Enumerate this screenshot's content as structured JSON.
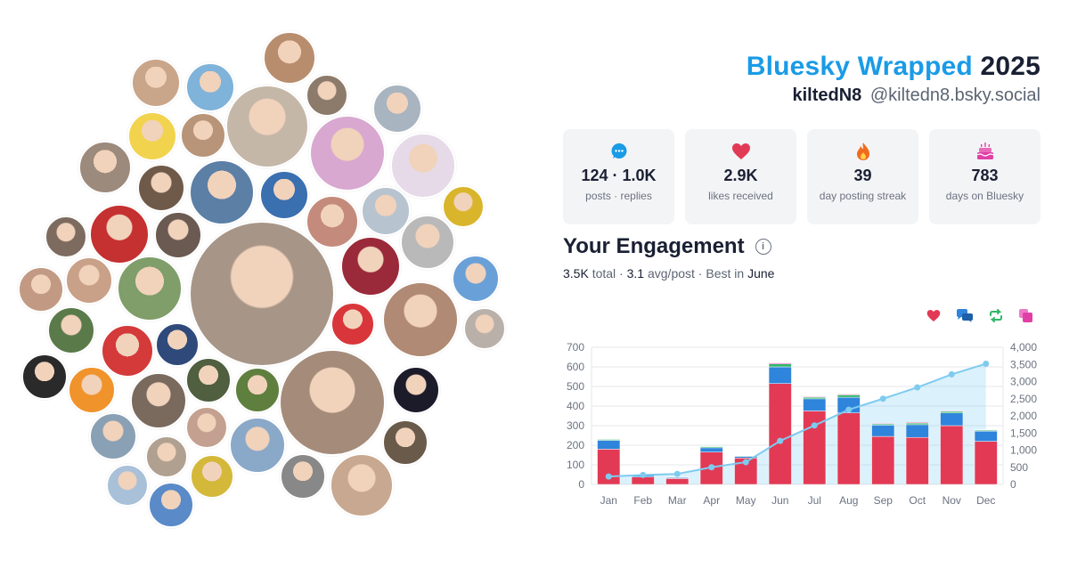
{
  "header": {
    "brand": "Bluesky Wrapped",
    "year": "2025",
    "display_name": "kiltedN8",
    "handle": "@kiltedn8.bsky.social"
  },
  "stats": [
    {
      "icon": "speech-bubble-icon",
      "value": "124 · 1.0K",
      "label": "posts · replies"
    },
    {
      "icon": "heart-icon",
      "value": "2.9K",
      "label": "likes received"
    },
    {
      "icon": "flame-icon",
      "value": "39",
      "label": "day posting streak"
    },
    {
      "icon": "cake-icon",
      "value": "783",
      "label": "days on Bluesky"
    }
  ],
  "engagement": {
    "title": "Your Engagement",
    "total_value": "3.5K",
    "total_label": "total",
    "avg_value": "3.1",
    "avg_label": "avg/post",
    "best_label": "Best in",
    "best_month": "June"
  },
  "colors": {
    "likes": "#e23a55",
    "replies": "#2f84dc",
    "reposts": "#31b86a",
    "quotes": "#e040a6",
    "cumulative": "#7ecbf0",
    "brand": "#1a9be6"
  },
  "chart_data": {
    "type": "bar",
    "stacked": true,
    "categories": [
      "Jan",
      "Feb",
      "Mar",
      "Apr",
      "May",
      "Jun",
      "Jul",
      "Aug",
      "Sep",
      "Oct",
      "Nov",
      "Dec"
    ],
    "series": [
      {
        "key": "likes",
        "values": [
          180,
          38,
          30,
          165,
          135,
          515,
          375,
          365,
          245,
          240,
          300,
          220
        ]
      },
      {
        "key": "replies",
        "values": [
          45,
          8,
          5,
          22,
          8,
          85,
          62,
          80,
          58,
          65,
          65,
          52
        ]
      },
      {
        "key": "reposts",
        "values": [
          5,
          2,
          2,
          6,
          3,
          15,
          8,
          12,
          6,
          8,
          8,
          5
        ]
      },
      {
        "key": "quotes",
        "values": [
          2,
          1,
          1,
          2,
          1,
          5,
          3,
          4,
          3,
          4,
          3,
          2
        ]
      }
    ],
    "cumulative": {
      "type": "area",
      "values": [
        230,
        275,
        305,
        500,
        650,
        1270,
        1720,
        2180,
        2500,
        2830,
        3210,
        3520
      ]
    },
    "ylim_left": [
      0,
      700
    ],
    "yticks_left": [
      "0",
      "100",
      "200",
      "300",
      "400",
      "500",
      "600",
      "700"
    ],
    "ylim_right": [
      0,
      4000
    ],
    "yticks_right": [
      "0",
      "500",
      "1,000",
      "1,500",
      "2,000",
      "2,500",
      "3,000",
      "3,500",
      "4,000"
    ],
    "grid": true
  },
  "avatars": [
    {
      "name": "avatar-1",
      "c": "#b88d6e"
    },
    {
      "name": "avatar-2",
      "c": "#7fb3d9"
    },
    {
      "name": "avatar-3",
      "c": "#c9a58a"
    },
    {
      "name": "avatar-4",
      "c": "#8c7a6b"
    },
    {
      "name": "avatar-5",
      "c": "#a8b4bf"
    },
    {
      "name": "avatar-6",
      "c": "#c5b7a8"
    },
    {
      "name": "avatar-7",
      "c": "#f2d34e"
    },
    {
      "name": "avatar-8",
      "c": "#b89478"
    },
    {
      "name": "avatar-9",
      "c": "#d8a8d0"
    },
    {
      "name": "avatar-10",
      "c": "#e6dae8"
    },
    {
      "name": "avatar-11",
      "c": "#9c8a7c"
    },
    {
      "name": "avatar-12",
      "c": "#6f5a4a"
    },
    {
      "name": "avatar-13",
      "c": "#5c7fa6"
    },
    {
      "name": "avatar-14",
      "c": "#3a6fb0"
    },
    {
      "name": "avatar-15",
      "c": "#c48b7c"
    },
    {
      "name": "avatar-16",
      "c": "#b7c4cf"
    },
    {
      "name": "avatar-17",
      "c": "#d9b52b"
    },
    {
      "name": "avatar-18",
      "c": "#c53030"
    },
    {
      "name": "avatar-19",
      "c": "#6b5a52"
    },
    {
      "name": "avatar-20",
      "c": "#7c6b5e"
    },
    {
      "name": "avatar-21",
      "c": "#b9b9b9"
    },
    {
      "name": "avatar-22",
      "c": "#a79688"
    },
    {
      "name": "avatar-23",
      "c": "#c9a088"
    },
    {
      "name": "avatar-24",
      "c": "#7f9e6a"
    },
    {
      "name": "avatar-25",
      "c": "#6aa0d8"
    },
    {
      "name": "avatar-26",
      "c": "#9a2a3a"
    },
    {
      "name": "avatar-27",
      "c": "#c29a83"
    },
    {
      "name": "avatar-28",
      "c": "#5a7a4a"
    },
    {
      "name": "avatar-29",
      "c": "#d8363a"
    },
    {
      "name": "avatar-30",
      "c": "#b08a74"
    },
    {
      "name": "avatar-31",
      "c": "#b9b0aa"
    },
    {
      "name": "avatar-32",
      "c": "#d43a3a"
    },
    {
      "name": "avatar-33",
      "c": "#2f4a7a"
    },
    {
      "name": "avatar-34",
      "c": "#2a2a2a"
    },
    {
      "name": "avatar-35",
      "c": "#f0932b"
    },
    {
      "name": "avatar-36",
      "c": "#4f5f3f"
    },
    {
      "name": "avatar-37",
      "c": "#5f7f3f"
    },
    {
      "name": "avatar-38",
      "c": "#a58c7a"
    },
    {
      "name": "avatar-39",
      "c": "#1b1b2a"
    },
    {
      "name": "avatar-40",
      "c": "#7a6a5e"
    },
    {
      "name": "avatar-41",
      "c": "#8aa0b4"
    },
    {
      "name": "avatar-42",
      "c": "#c4a090"
    },
    {
      "name": "avatar-43",
      "c": "#8aa8c8"
    },
    {
      "name": "avatar-44",
      "c": "#b0a090"
    },
    {
      "name": "avatar-45",
      "c": "#6a5a4a"
    },
    {
      "name": "avatar-46",
      "c": "#d4b83a"
    },
    {
      "name": "avatar-47",
      "c": "#888888"
    },
    {
      "name": "avatar-48",
      "c": "#c8a890"
    },
    {
      "name": "avatar-49",
      "c": "#a8c0d8"
    },
    {
      "name": "avatar-50",
      "c": "#5a8ac8"
    }
  ]
}
